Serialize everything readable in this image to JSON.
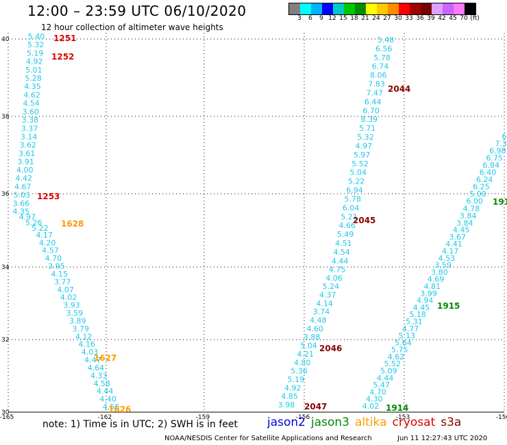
{
  "title": "12:00 – 23:59 UTC 06/10/2020",
  "subtitle": "12 hour collection of altimeter wave heights",
  "legend": {
    "colors": [
      "#808080",
      "#00ffff",
      "#00b4ff",
      "#0000ff",
      "#00c8c8",
      "#00c800",
      "#008c00",
      "#ffff00",
      "#ffc800",
      "#ff8c00",
      "#ff0000",
      "#a00000",
      "#780000",
      "#e0a0ff",
      "#c864ff",
      "#ff78ff",
      "#000000"
    ],
    "labels": [
      "3",
      "6",
      "9",
      "12",
      "15",
      "18",
      "21",
      "24",
      "27",
      "30",
      "33",
      "36",
      "39",
      "42",
      "45",
      "70",
      "(ft)"
    ]
  },
  "axes": {
    "lon_labels": [
      "-165",
      "-162",
      "-159",
      "-156",
      "-153",
      "-150"
    ],
    "lat_labels": [
      "40",
      "38",
      "36",
      "34",
      "32",
      "30"
    ]
  },
  "colors": {
    "swh": "#1ec8e8",
    "cryosat": "#dd0000",
    "altika": "#ff9900",
    "jason3": "#008800",
    "s3a": "#880000"
  },
  "tracks": [
    {
      "id": "t1",
      "values": [
        "5.40",
        "5.32",
        "5.19",
        "4.92",
        "5.01",
        "5.28",
        "4.35",
        "4.62",
        "4.54",
        "3.60",
        "3.38",
        "3.37",
        "3.14",
        "3.62",
        "3.61",
        "3.91",
        "4.00",
        "4.42",
        "4.67",
        "5.03",
        "3.66",
        "4.35",
        "4.97",
        "5.26",
        "5.22",
        "4.17",
        "4.20",
        "4.57",
        "4.70",
        "3.95",
        "4.15",
        "3.77",
        "4.07",
        "4.02",
        "3.93",
        "3.59",
        "3.89",
        "3.79",
        "4.12",
        "4.16",
        "4.03",
        "4.47",
        "4.64",
        "4.33",
        "4.58",
        "4.44",
        "4.40",
        "4.56"
      ]
    },
    {
      "id": "t2",
      "values": [
        "5.48",
        "6.56",
        "5.78",
        "6.74",
        "8.06",
        "7.83",
        "7.47",
        "6.44",
        "6.70",
        "8.39",
        "5.71",
        "5.32",
        "4.97",
        "5.97",
        "5.52",
        "5.04",
        "5.22",
        "6.94",
        "5.78",
        "6.04",
        "5.21",
        "4.66",
        "5.49",
        "4.51",
        "4.54",
        "4.44",
        "4.75",
        "4.06",
        "5.24",
        "4.37",
        "4.14",
        "3.74",
        "4.48",
        "4.60",
        "3.88",
        "5.04",
        "4.21",
        "4.80",
        "5.36",
        "5.19",
        "4.92",
        "4.85",
        "3.98"
      ]
    },
    {
      "id": "t3",
      "values": [
        "6",
        "7.3",
        "6.98",
        "6.75",
        "6.84",
        "6.40",
        "6.24",
        "6.25",
        "5.00",
        "6.00",
        "4.78",
        "3.84",
        "3.84",
        "4.45",
        "3.67",
        "4.41",
        "4.17",
        "4.53",
        "3.59",
        "3.80",
        "4.69",
        "4.81",
        "3.99",
        "4.94",
        "4.45",
        "5.18",
        "5.31",
        "4.77",
        "5.13",
        "5.64",
        "5.75",
        "4.62",
        "5.52",
        "5.09",
        "4.44",
        "5.47",
        "4.70",
        "4.30",
        "4.02"
      ]
    }
  ],
  "pass_labels": [
    {
      "id": "1251",
      "text": "1251",
      "sat": "cryosat"
    },
    {
      "id": "1252",
      "text": "1252",
      "sat": "cryosat"
    },
    {
      "id": "1253",
      "text": "1253",
      "sat": "cryosat"
    },
    {
      "id": "1628",
      "text": "1628",
      "sat": "altika"
    },
    {
      "id": "1627",
      "text": "1627",
      "sat": "altika"
    },
    {
      "id": "1626",
      "text": "1626",
      "sat": "altika"
    },
    {
      "id": "2044",
      "text": "2044",
      "sat": "s3a"
    },
    {
      "id": "2045",
      "text": "2045",
      "sat": "s3a"
    },
    {
      "id": "2046",
      "text": "2046",
      "sat": "s3a"
    },
    {
      "id": "2047",
      "text": "2047",
      "sat": "s3a"
    },
    {
      "id": "1915",
      "text": "1915",
      "sat": "jason3"
    },
    {
      "id": "1914",
      "text": "1914",
      "sat": "jason3"
    },
    {
      "id": "191",
      "text": "191",
      "sat": "jason3"
    }
  ],
  "note": "note: 1) Time is in UTC; 2) SWH is in feet",
  "satellites": [
    {
      "name": "jason2",
      "color": "#0000dd"
    },
    {
      "name": "jason3",
      "color": "#008800"
    },
    {
      "name": "altika",
      "color": "#ff9900"
    },
    {
      "name": "cryosat",
      "color": "#dd0000"
    },
    {
      "name": "s3a",
      "color": "#880000"
    }
  ],
  "footer_left": "NOAA/NESDIS Center for Satellite Applications and Research",
  "footer_right": "Jun 11 12:27:43 UTC 2020"
}
